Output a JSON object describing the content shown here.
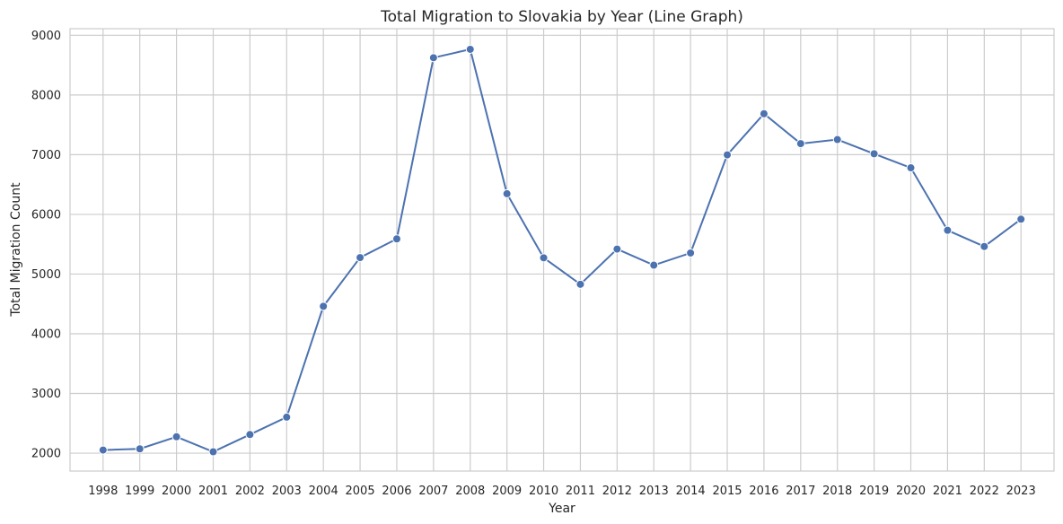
{
  "chart_data": {
    "type": "line",
    "title": "Total Migration to Slovakia by Year (Line Graph)",
    "xlabel": "Year",
    "ylabel": "Total Migration Count",
    "x": [
      1998,
      1999,
      2000,
      2001,
      2002,
      2003,
      2004,
      2005,
      2006,
      2007,
      2008,
      2009,
      2010,
      2011,
      2012,
      2013,
      2014,
      2015,
      2016,
      2017,
      2018,
      2019,
      2020,
      2021,
      2022,
      2023
    ],
    "series": [
      {
        "values": [
          2052,
          2072,
          2274,
          2023,
          2312,
          2603,
          4460,
          5276,
          5589,
          8624,
          8765,
          6346,
          5272,
          4829,
          5419,
          5149,
          5353,
          6997,
          7686,
          7185,
          7253,
          7015,
          6780,
          5733,
          5462,
          5919
        ],
        "color": "#4c72b0"
      }
    ],
    "yticks": [
      2000,
      3000,
      4000,
      5000,
      6000,
      7000,
      8000,
      9000
    ],
    "ylim": [
      1700,
      9110
    ],
    "xlim": [
      1997.1,
      2023.9
    ],
    "grid": true,
    "legend": "none"
  }
}
